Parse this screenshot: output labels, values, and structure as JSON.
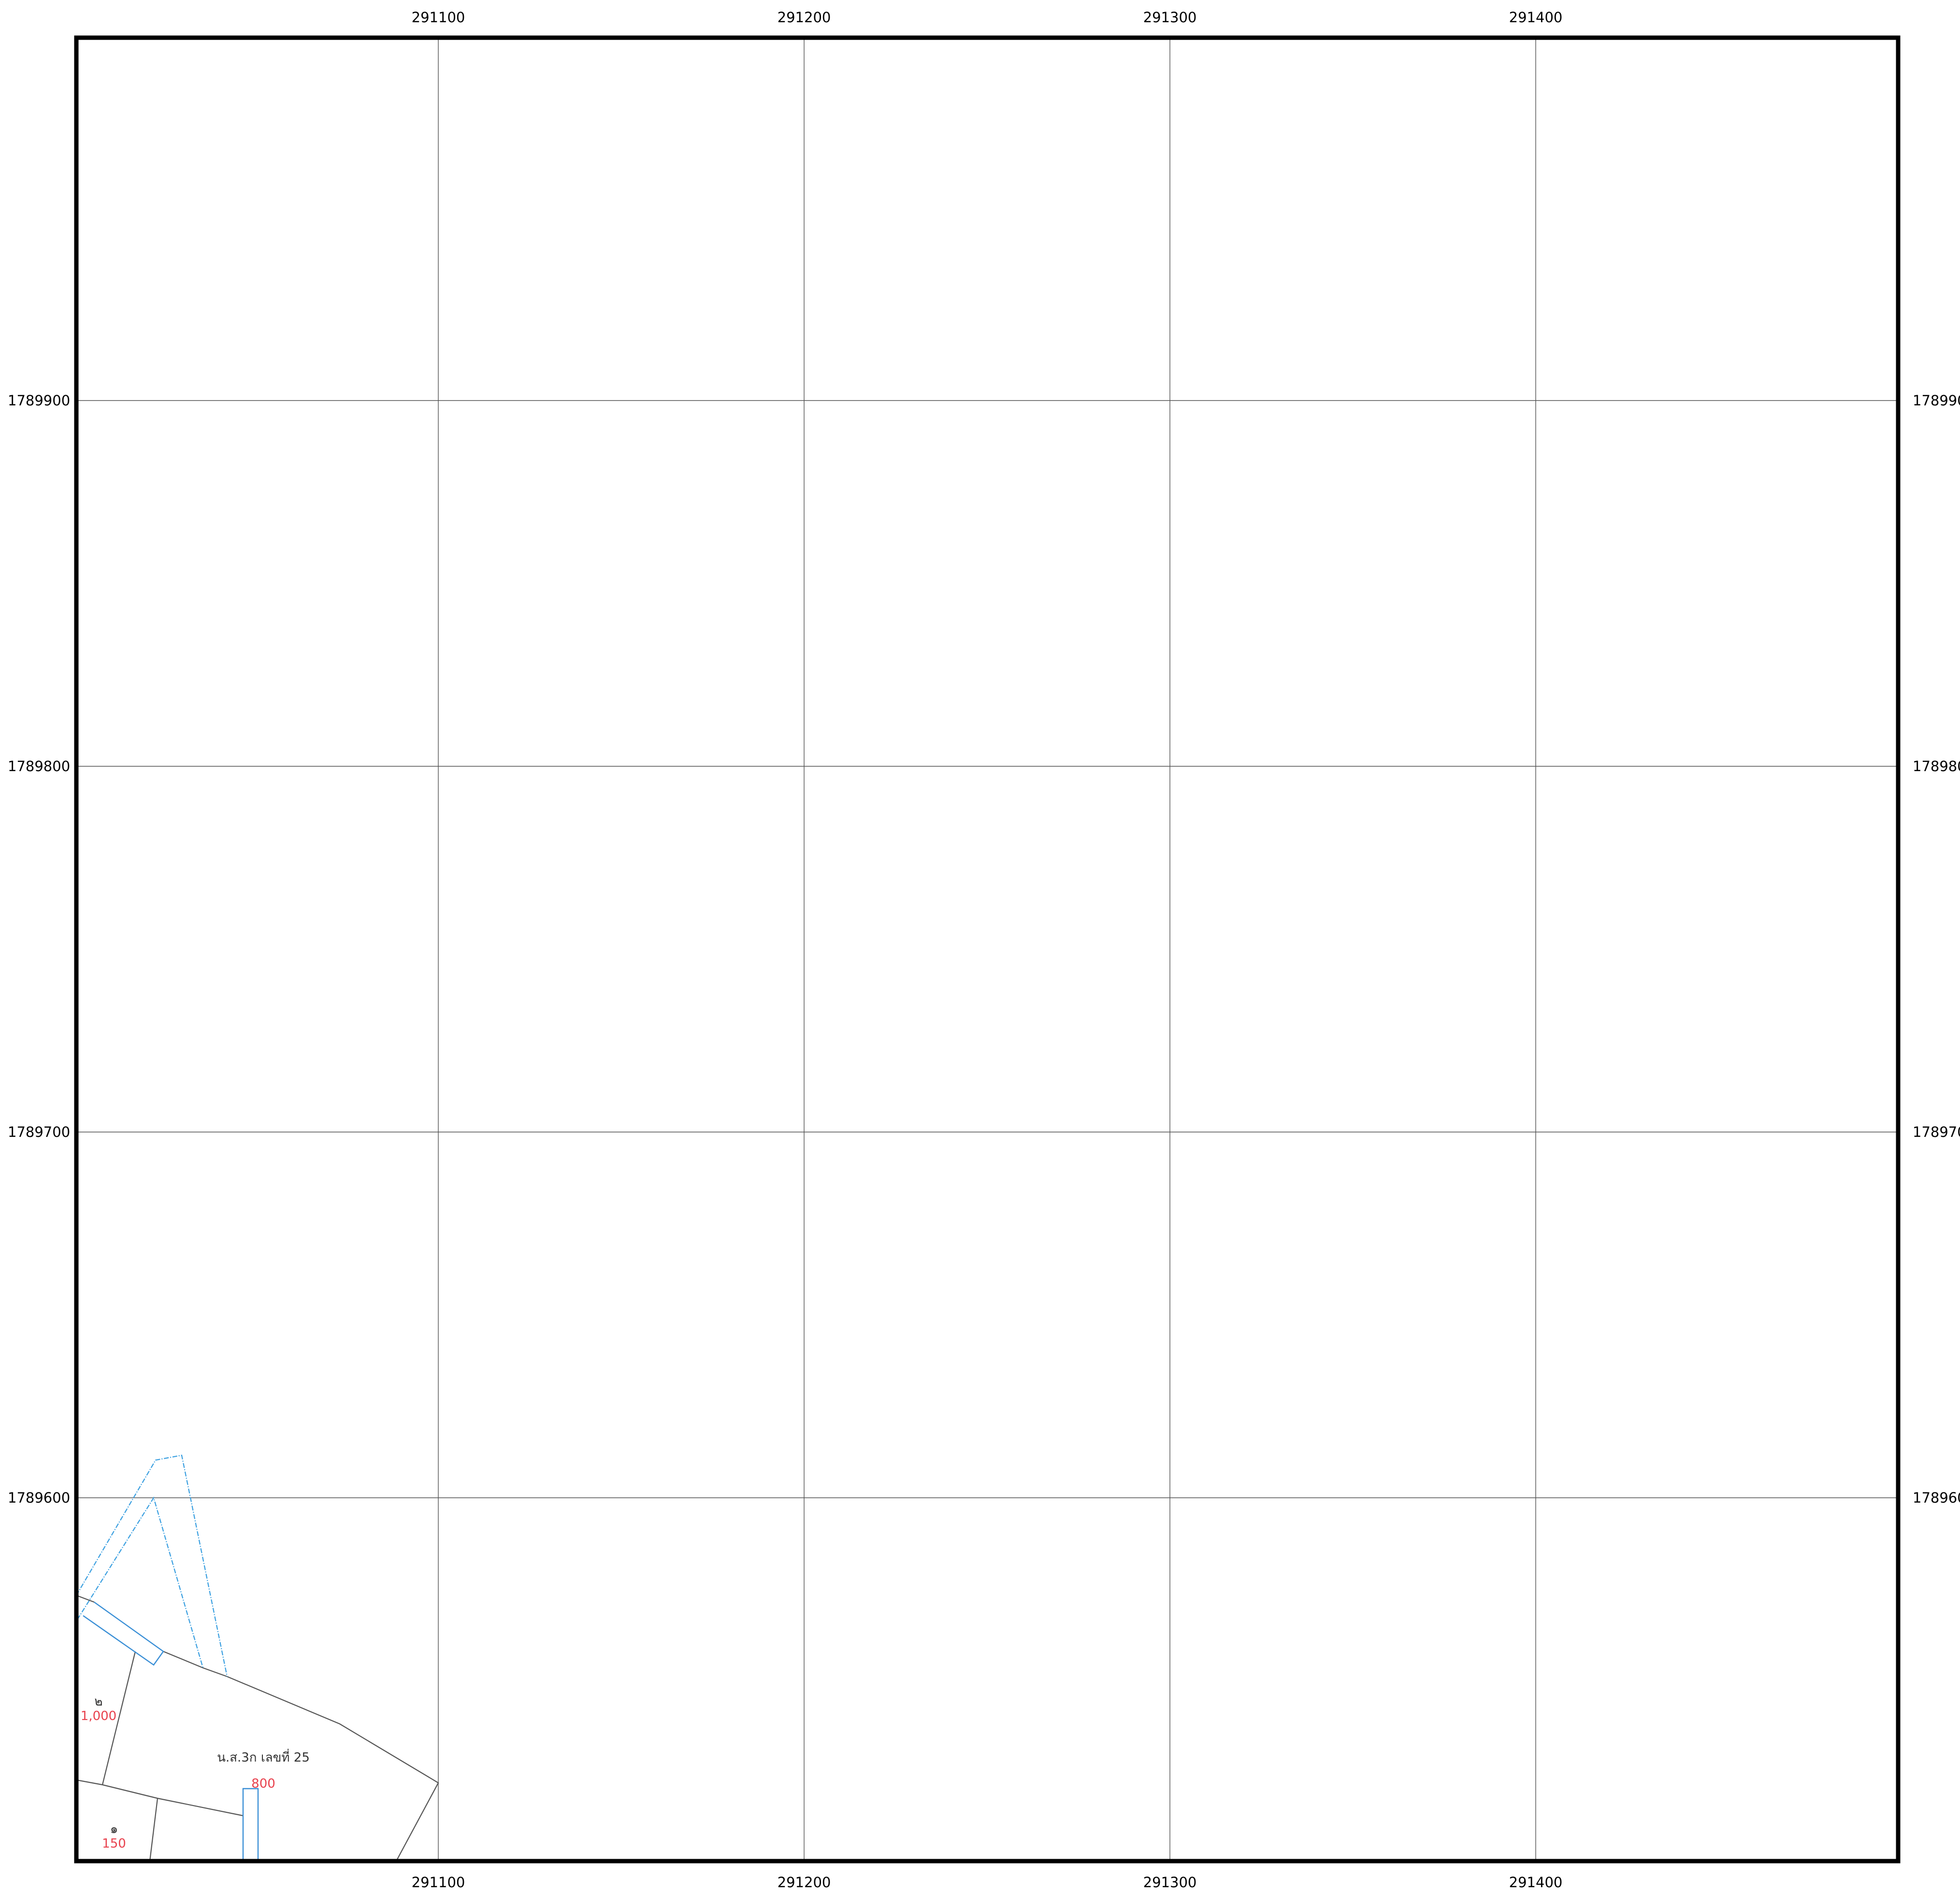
{
  "grid": {
    "x_ticks": [
      "291100",
      "291200",
      "291300",
      "291400"
    ],
    "y_ticks": [
      "1789900",
      "1789800",
      "1789700",
      "1789600"
    ]
  },
  "parcels": {
    "title": "น.ส.3ก เลขที่ 25",
    "p2": {
      "number": "๒",
      "value": "1,000"
    },
    "p1": {
      "number": "๑",
      "value": "150"
    },
    "strip_value": "800"
  },
  "colors": {
    "grid": "#555555",
    "frame": "#000000",
    "boundary": "#555555",
    "road": "#3a8fd6",
    "value_text": "#e8424e"
  }
}
